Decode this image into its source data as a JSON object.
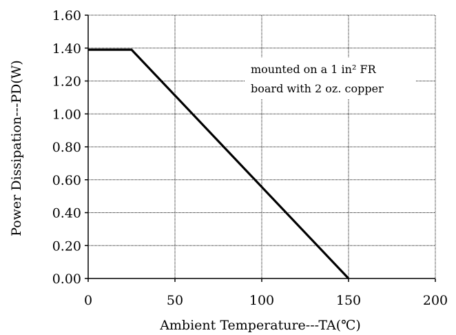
{
  "chart_data": {
    "type": "line",
    "xlabel": "Ambient Temperature---TA(℃)",
    "ylabel": "Power Dissipation---PD(W)",
    "x_ticks": [
      "0",
      "50",
      "100",
      "150",
      "200"
    ],
    "y_ticks": [
      "0.00",
      "0.20",
      "0.40",
      "0.60",
      "0.80",
      "1.00",
      "1.20",
      "1.40",
      "1.60"
    ],
    "xlim": [
      0,
      200
    ],
    "ylim": [
      0,
      1.6
    ],
    "grid": true,
    "series": [
      {
        "x": [
          0,
          25,
          150
        ],
        "y": [
          1.39,
          1.39,
          0.0
        ]
      }
    ],
    "annotation": {
      "line1": "mounted on a 1 in² FR",
      "line2": "board with 2 oz. copper"
    },
    "colors": {
      "line": "#000000",
      "grid": "#000000",
      "axes": "#000000"
    }
  }
}
